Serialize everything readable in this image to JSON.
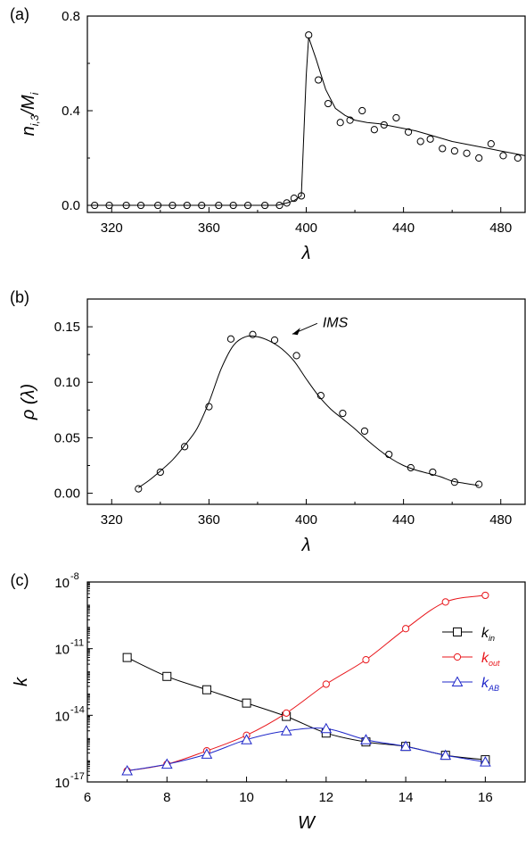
{
  "chart_data": [
    {
      "id": "a",
      "panel_label": "(a)",
      "type": "line",
      "xlabel": "λ",
      "ylabel": "n",
      "ylabel_sub": "i,3",
      "ylabel_tail": "/M",
      "ylabel_tail_sub": "i",
      "xlim": [
        310,
        490
      ],
      "ylim": [
        -0.03,
        0.8
      ],
      "xticks": [
        320,
        360,
        400,
        440,
        480
      ],
      "yticks": [
        0.0,
        0.4,
        0.8
      ],
      "ytick_labels": [
        "0.0",
        "0.4",
        "0.8"
      ],
      "series": [
        {
          "kind": "points",
          "marker": "circle",
          "color": "#000000",
          "x": [
            313,
            319,
            326,
            332,
            339,
            345,
            351,
            357,
            364,
            370,
            376,
            383,
            389,
            392,
            395,
            398,
            401,
            405,
            409,
            414,
            418,
            423,
            428,
            432,
            437,
            442,
            447,
            451,
            456,
            461,
            466,
            471,
            476,
            481,
            487
          ],
          "y": [
            0.0,
            0.0,
            0.0,
            0.0,
            0.0,
            0.0,
            0.0,
            0.0,
            0.0,
            0.0,
            0.0,
            0.0,
            0.0,
            0.01,
            0.03,
            0.04,
            0.72,
            0.53,
            0.43,
            0.35,
            0.36,
            0.4,
            0.32,
            0.34,
            0.37,
            0.31,
            0.27,
            0.28,
            0.24,
            0.23,
            0.22,
            0.2,
            0.26,
            0.21,
            0.2
          ]
        },
        {
          "kind": "line",
          "color": "#000000",
          "x": [
            310,
            388,
            392,
            395,
            398,
            399,
            400,
            401,
            404,
            408,
            412,
            416,
            420,
            425,
            430,
            435,
            440,
            445,
            450,
            455,
            460,
            465,
            470,
            475,
            480,
            485,
            490
          ],
          "y": [
            0.0,
            0.0,
            0.01,
            0.02,
            0.04,
            0.3,
            0.55,
            0.71,
            0.62,
            0.49,
            0.41,
            0.38,
            0.36,
            0.35,
            0.345,
            0.335,
            0.325,
            0.315,
            0.3,
            0.285,
            0.27,
            0.26,
            0.25,
            0.24,
            0.23,
            0.22,
            0.21
          ]
        }
      ]
    },
    {
      "id": "b",
      "panel_label": "(b)",
      "type": "line",
      "xlabel": "λ",
      "ylabel": "ρ (λ)",
      "xlim": [
        310,
        490
      ],
      "ylim": [
        -0.01,
        0.175
      ],
      "xticks": [
        320,
        360,
        400,
        440,
        480
      ],
      "yticks": [
        0.0,
        0.05,
        0.1,
        0.15
      ],
      "ytick_labels": [
        "0.00",
        "0.05",
        "0.10",
        "0.15"
      ],
      "annotation": {
        "text": "IMS",
        "x": 384,
        "y": 0.145
      },
      "series": [
        {
          "kind": "points",
          "marker": "circle",
          "color": "#000000",
          "x": [
            331,
            340,
            350,
            360,
            369,
            378,
            387,
            396,
            406,
            415,
            424,
            434,
            443,
            452,
            461,
            471
          ],
          "y": [
            0.004,
            0.019,
            0.042,
            0.078,
            0.139,
            0.143,
            0.138,
            0.124,
            0.088,
            0.072,
            0.056,
            0.035,
            0.023,
            0.019,
            0.01,
            0.008
          ]
        },
        {
          "kind": "line",
          "color": "#000000",
          "x": [
            331,
            335,
            340,
            345,
            350,
            355,
            360,
            365,
            370,
            375,
            380,
            385,
            390,
            395,
            400,
            405,
            410,
            415,
            420,
            425,
            430,
            435,
            440,
            445,
            450,
            455,
            460,
            465,
            471
          ],
          "y": [
            0.005,
            0.011,
            0.02,
            0.03,
            0.043,
            0.058,
            0.082,
            0.112,
            0.133,
            0.141,
            0.141,
            0.137,
            0.13,
            0.119,
            0.103,
            0.088,
            0.076,
            0.067,
            0.058,
            0.048,
            0.039,
            0.031,
            0.025,
            0.021,
            0.018,
            0.015,
            0.011,
            0.009,
            0.007
          ]
        }
      ]
    },
    {
      "id": "c",
      "panel_label": "(c)",
      "type": "line",
      "yscale": "log",
      "xlabel": "W",
      "ylabel": "k",
      "xlim": [
        6,
        17
      ],
      "ylim_log10": [
        -17,
        -8
      ],
      "xticks": [
        6,
        8,
        10,
        12,
        14,
        16
      ],
      "yticks_log10": [
        -17,
        -14,
        -11,
        -8
      ],
      "ytick_labels": [
        "10",
        "10",
        "10",
        "10"
      ],
      "ytick_exponents": [
        "-17",
        "-14",
        "-11",
        "-8"
      ],
      "legend_position": "right",
      "series": [
        {
          "name": "k",
          "name_sub": "in",
          "marker": "square",
          "color": "#000000",
          "x": [
            7,
            8,
            9,
            10,
            11,
            12,
            13,
            14,
            15,
            16
          ],
          "log10_y": [
            -11.4,
            -12.25,
            -12.85,
            -13.45,
            -14.05,
            -14.8,
            -15.2,
            -15.4,
            -15.8,
            -16.0
          ]
        },
        {
          "name": "k",
          "name_sub": "out",
          "marker": "circle",
          "color": "#e8161b",
          "x": [
            7,
            8,
            9,
            10,
            11,
            12,
            13,
            14,
            15,
            16
          ],
          "log10_y": [
            -16.5,
            -16.2,
            -15.6,
            -14.9,
            -13.9,
            -12.6,
            -11.5,
            -10.1,
            -8.9,
            -8.6
          ]
        },
        {
          "name": "k",
          "name_sub": "AB",
          "marker": "triangle",
          "color": "#1f27c9",
          "x": [
            7,
            8,
            9,
            10,
            11,
            12,
            13,
            14,
            15,
            16
          ],
          "log10_y": [
            -16.5,
            -16.2,
            -15.75,
            -15.1,
            -14.7,
            -14.6,
            -15.1,
            -15.4,
            -15.8,
            -16.1
          ]
        }
      ]
    }
  ]
}
